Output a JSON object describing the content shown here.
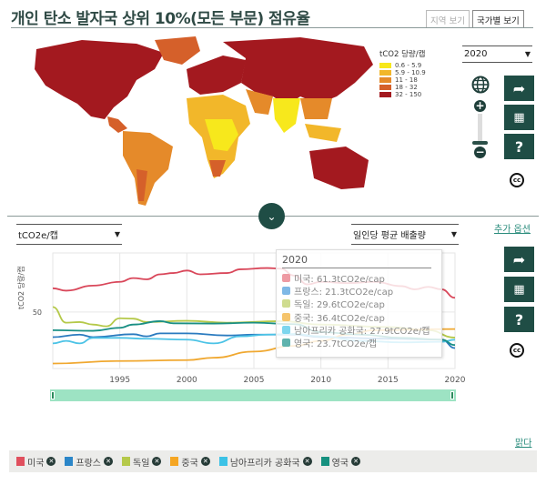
{
  "header": {
    "title": "개인 탄소 발자국 상위 10%(모든 부문) 점유율",
    "tab_region": "지역 보기",
    "tab_country": "국가별 보기"
  },
  "map": {
    "legend_title": "tCO2 당량/캡",
    "legend": [
      {
        "label": "0.6 - 5.9",
        "color": "#f7e81c"
      },
      {
        "label": "5.9 - 10.9",
        "color": "#f2b72a"
      },
      {
        "label": "11 - 18",
        "color": "#e58a2a"
      },
      {
        "label": "18 - 32",
        "color": "#d5602a"
      },
      {
        "label": "32 - 150",
        "color": "#a3191f"
      }
    ],
    "year_select": "2020",
    "icons": [
      "globe-icon",
      "zoom-in-icon",
      "zoom-slider",
      "zoom-out-icon",
      "share-icon",
      "table-icon",
      "help-icon",
      "cc-icon"
    ]
  },
  "toggle_icon": "chevron-down-icon",
  "controls": {
    "unit_select": "tCO2e/캡",
    "measure_select": "일인당 평균 배출량",
    "more_options": "추가 옵션",
    "clear": "맑다"
  },
  "chart_data": {
    "type": "line",
    "ylabel": "tCO2 당량/캡",
    "ylim": [
      5,
      97
    ],
    "yticks": [
      50
    ],
    "xlim": [
      1990,
      2020
    ],
    "xticks": [
      "1995",
      "2000",
      "2005",
      "2010",
      "2015",
      "2020"
    ],
    "grid": true,
    "series": [
      {
        "name": "미국",
        "color": "#d9475a",
        "x": [
          1990,
          1991,
          1993,
          1995,
          1996,
          1997,
          1998,
          1999,
          2000,
          2001,
          2003,
          2004,
          2006,
          2007,
          2008,
          2009,
          2010,
          2012,
          2014,
          2016,
          2017,
          2018,
          2019,
          2020
        ],
        "y": [
          68.9,
          67,
          71,
          74,
          77,
          76,
          80,
          81,
          83,
          80,
          81,
          84,
          85,
          84.5,
          79,
          72,
          74,
          73,
          74,
          70.6,
          68,
          70,
          68,
          61.3
        ]
      },
      {
        "name": "프랑스",
        "color": "#2b7bbf",
        "x": [
          1990,
          1992,
          1993,
          1996,
          1997,
          1998,
          2000,
          2003,
          2005,
          2008,
          2010,
          2015,
          2019,
          2020
        ],
        "y": [
          30,
          32,
          30,
          32.3,
          30.6,
          33,
          33,
          31.3,
          32,
          32,
          30,
          28.7,
          28,
          21.3
        ]
      },
      {
        "name": "독일",
        "color": "#b5c94a",
        "x": [
          1990,
          1991,
          1992,
          1993,
          1994,
          1995,
          1996,
          1997,
          2000,
          2003,
          2007,
          2010,
          2015,
          2018,
          2020
        ],
        "y": [
          54,
          41.5,
          42,
          40,
          38.6,
          45,
          44.7,
          42,
          43,
          41.5,
          42.7,
          40,
          38,
          35.5,
          29.6
        ]
      },
      {
        "name": "중국",
        "color": "#f0a830",
        "x": [
          1990,
          1995,
          2000,
          2002,
          2005,
          2008,
          2010,
          2012,
          2014,
          2020
        ],
        "y": [
          9,
          11,
          11.7,
          13.6,
          18.5,
          23,
          27,
          32,
          35.5,
          36.4
        ]
      },
      {
        "name": "남아프리카 공화국",
        "color": "#4cc3e6",
        "x": [
          1990,
          1991,
          1992,
          1993,
          1995,
          1997,
          2000,
          2002,
          2004,
          2006,
          2008,
          2010,
          2013,
          2016,
          2019,
          2020
        ],
        "y": [
          25,
          27,
          25,
          29.4,
          29.4,
          28.7,
          28,
          25,
          30.6,
          32,
          32.5,
          30.6,
          27,
          25.8,
          26.3,
          27.9
        ]
      },
      {
        "name": "영국",
        "color": "#1a8f84",
        "x": [
          1990,
          1993,
          1995,
          1996,
          1998,
          1999,
          2002,
          2005,
          2008,
          2010,
          2013,
          2016,
          2019,
          2020
        ],
        "y": [
          35.5,
          35,
          37.4,
          40,
          42.7,
          41,
          40.8,
          41.5,
          40.3,
          34,
          32,
          29.4,
          28,
          23.7
        ]
      }
    ],
    "tooltip": {
      "year": "2020",
      "rows": [
        "미국: 61.3tCO2e/cap",
        "프랑스: 21.3tCO2e/cap",
        "독일: 29.6tCO2e/cap",
        "중국: 36.4tCO2e/cap",
        "남아프리카 공화국: 27.9tCO2e/캡",
        "영국: 23.7tCO2e/캡"
      ]
    },
    "range": [
      1990,
      2020
    ]
  },
  "legend": [
    {
      "label": "미국",
      "color": "#e0505e"
    },
    {
      "label": "프랑스",
      "color": "#2b86c8"
    },
    {
      "label": "독일",
      "color": "#b5c94a"
    },
    {
      "label": "중국",
      "color": "#f5a623"
    },
    {
      "label": "남아프리카 공화국",
      "color": "#3cc2e6"
    },
    {
      "label": "영국",
      "color": "#16917f"
    }
  ]
}
